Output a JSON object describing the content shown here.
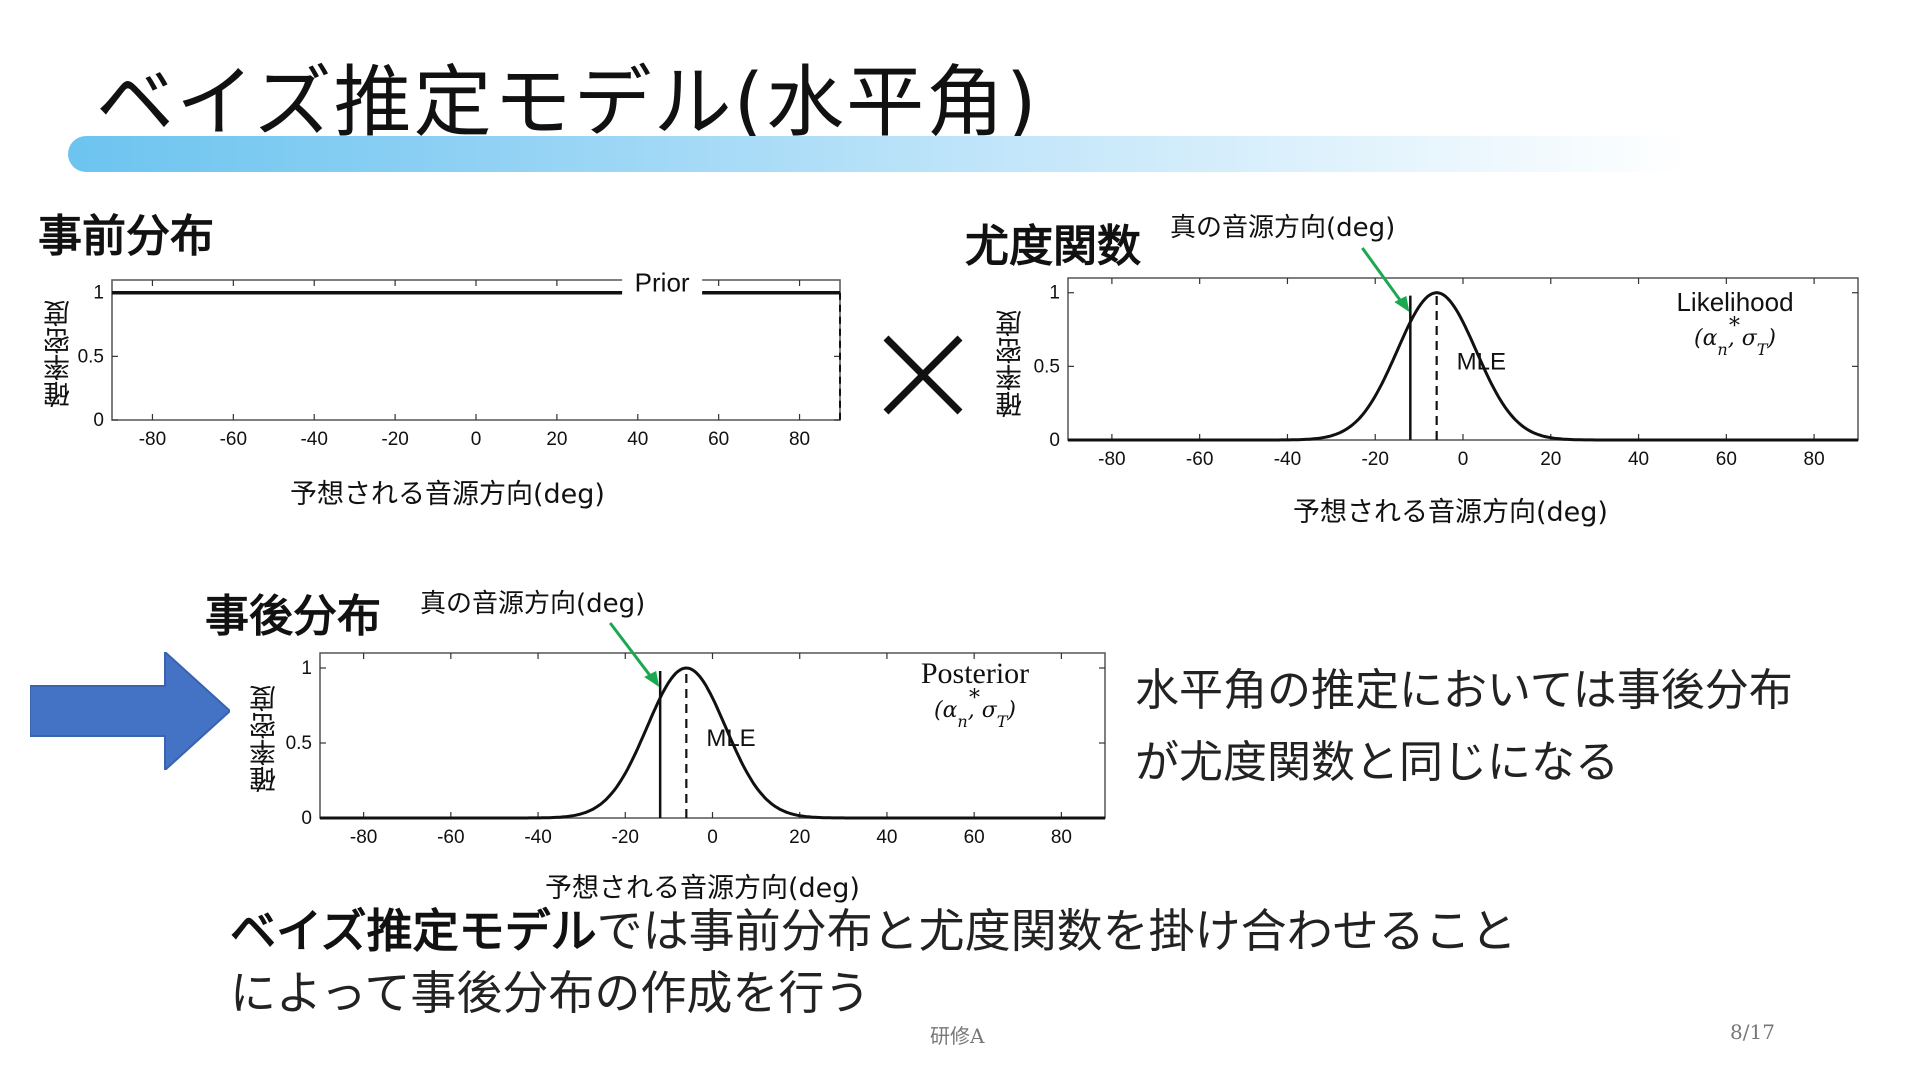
{
  "slide": {
    "title": "ベイズ推定モデル(水平角)",
    "prior_heading": "事前分布",
    "likelihood_heading": "尤度関数",
    "posterior_heading": "事後分布",
    "true_direction_label_1": "真の音源方向(deg)",
    "true_direction_label_2": "真の音源方向(deg)",
    "side_text": "水平角の推定においては事後分布が尤度関数と同じになる",
    "bottom_bold": "ベイズ推定モデル",
    "bottom_rest": "では事前分布と尤度関数を掛け合わせること",
    "bottom_line2": "によって事後分布の作成を行う",
    "footer_center": "研修A",
    "footer_right": "8/17"
  },
  "icons": {
    "times": "multiplication-x-icon",
    "arrow": "right-arrow-icon"
  },
  "colors": {
    "accent_arrow": "#4472c4",
    "annotation_arrow": "#1aa850",
    "bar_start": "#6cc4ef"
  },
  "chart_data": [
    {
      "type": "line",
      "legend": "Prior",
      "xlabel": "予想される音源方向(deg)",
      "ylabel": "確率密度",
      "xlim": [
        -90,
        90
      ],
      "ylim": [
        0,
        1.1
      ],
      "xticks": [
        "-80",
        "-60",
        "-40",
        "-20",
        "0",
        "20",
        "40",
        "60",
        "80"
      ],
      "yticks": [
        "0",
        "0.5",
        "1"
      ],
      "series": [
        {
          "x": [
            -90,
            90
          ],
          "y": [
            1,
            1
          ]
        }
      ]
    },
    {
      "type": "line",
      "legend": "Likelihood",
      "params": "(α*n, σT)",
      "annotation": "MLE",
      "xlabel": "予想される音源方向(deg)",
      "ylabel": "確率密度",
      "xlim": [
        -90,
        90
      ],
      "ylim": [
        0,
        1.1
      ],
      "xticks": [
        "-80",
        "-60",
        "-40",
        "-20",
        "0",
        "20",
        "40",
        "60",
        "80"
      ],
      "yticks": [
        "0",
        "0.5",
        "1"
      ],
      "gaussian": {
        "mean": -6,
        "sd": 9,
        "peak": 1
      },
      "true_direction": -12,
      "mle": -6
    },
    {
      "type": "line",
      "legend": "Posterior",
      "params": "(α*n, σT)",
      "annotation": "MLE",
      "xlabel": "予想される音源方向(deg)",
      "ylabel": "確率密度",
      "xlim": [
        -90,
        90
      ],
      "ylim": [
        0,
        1.1
      ],
      "xticks": [
        "-80",
        "-60",
        "-40",
        "-20",
        "0",
        "20",
        "40",
        "60",
        "80"
      ],
      "yticks": [
        "0",
        "0.5",
        "1"
      ],
      "gaussian": {
        "mean": -6,
        "sd": 9,
        "peak": 1
      },
      "true_direction": -12,
      "mle": -6
    }
  ]
}
